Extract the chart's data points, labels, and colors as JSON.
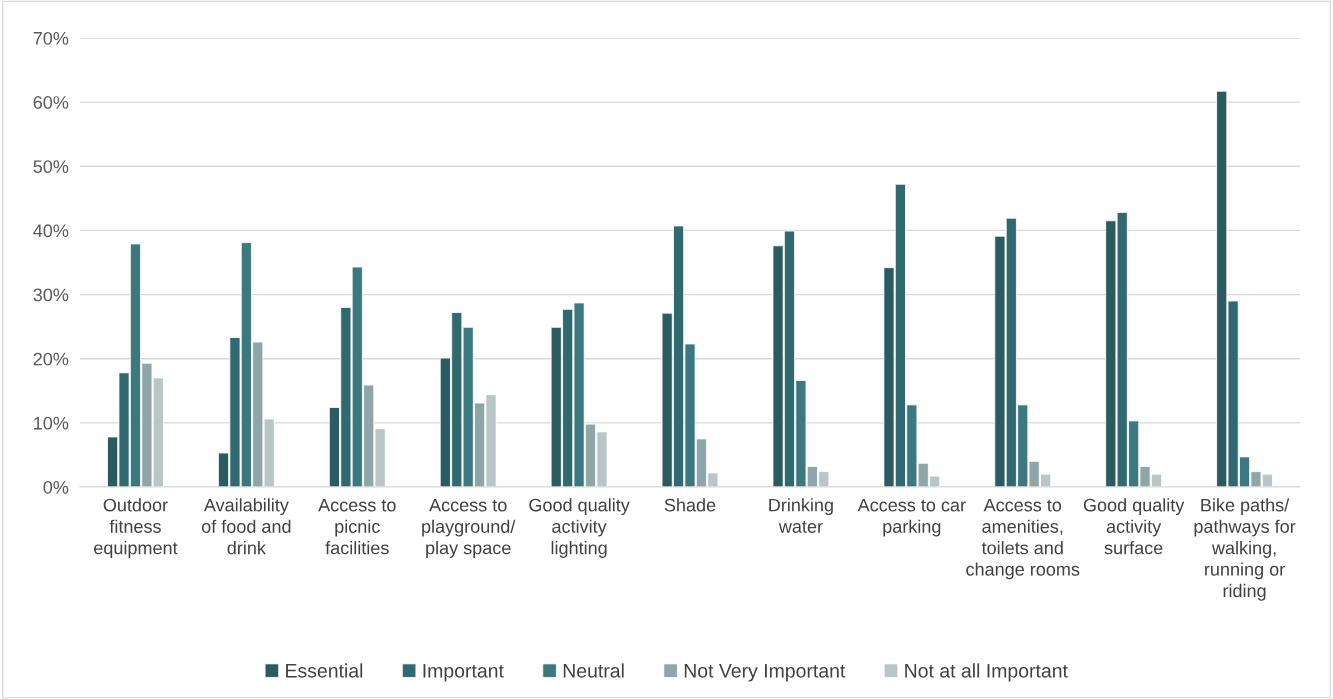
{
  "chart_data": {
    "type": "bar",
    "categories": [
      "Outdoor fitness equipment",
      "Availability of food and drink",
      "Access to picnic facilities",
      "Access to playground/ play space",
      "Good quality activity lighting",
      "Shade",
      "Drinking water",
      "Access to car parking",
      "Access to amenities, toilets and change rooms",
      "Good quality activity surface",
      "Bike paths/ pathways for walking, running or riding"
    ],
    "series": [
      {
        "name": "Essential",
        "color": "#2a5b60",
        "values": [
          7.8,
          5.3,
          12.4,
          20.1,
          24.9,
          27.1,
          37.6,
          34.2,
          39.1,
          41.5,
          61.7
        ]
      },
      {
        "name": "Important",
        "color": "#316970",
        "values": [
          17.8,
          23.3,
          28.0,
          27.2,
          27.7,
          40.7,
          39.9,
          47.2,
          41.9,
          42.8,
          29.0
        ]
      },
      {
        "name": "Neutral",
        "color": "#3c7880",
        "values": [
          37.9,
          38.1,
          34.3,
          24.9,
          28.7,
          22.3,
          16.6,
          12.8,
          12.8,
          10.3,
          4.7
        ]
      },
      {
        "name": "Not Very Important",
        "color": "#8fa6a8",
        "values": [
          19.3,
          22.6,
          15.9,
          13.1,
          9.8,
          7.5,
          3.2,
          3.7,
          4.0,
          3.2,
          2.4
        ]
      },
      {
        "name": "Not at all Important",
        "color": "#b8c6c7",
        "values": [
          17.0,
          10.6,
          9.1,
          14.4,
          8.6,
          2.2,
          2.4,
          1.7,
          2.0,
          2.0,
          2.0
        ]
      }
    ],
    "ylim": [
      0,
      70
    ],
    "yticks": [
      {
        "value": 0,
        "label": "0%"
      },
      {
        "value": 10,
        "label": "10%"
      },
      {
        "value": 20,
        "label": "20%"
      },
      {
        "value": 30,
        "label": "30%"
      },
      {
        "value": 40,
        "label": "40%"
      },
      {
        "value": 50,
        "label": "50%"
      },
      {
        "value": 60,
        "label": "60%"
      },
      {
        "value": 70,
        "label": "70%"
      }
    ],
    "grid": "y",
    "legend": "bottom"
  }
}
